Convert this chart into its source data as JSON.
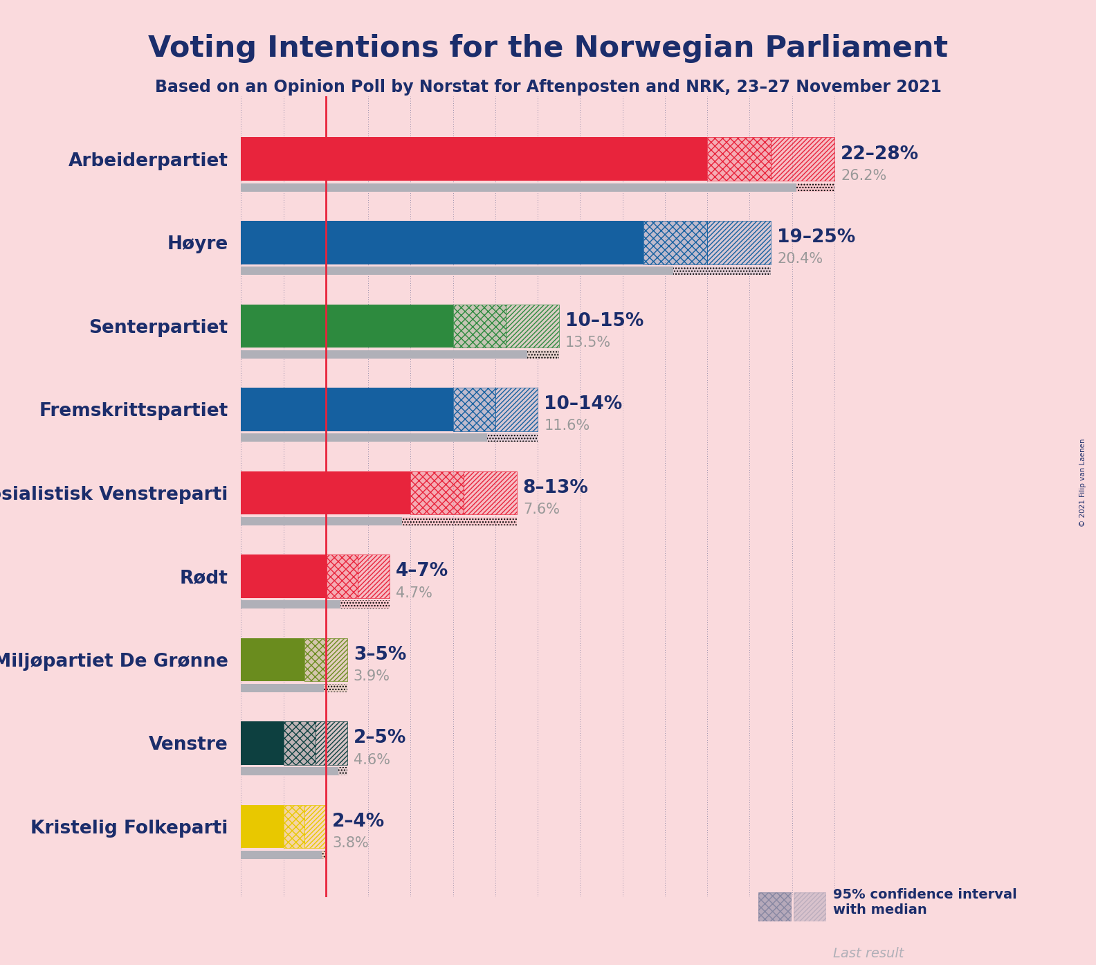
{
  "title": "Voting Intentions for the Norwegian Parliament",
  "subtitle": "Based on an Opinion Poll by Norstat for Aftenposten and NRK, 23–27 November 2021",
  "copyright": "© 2021 Filip van Laenen",
  "background_color": "#fadadd",
  "parties": [
    {
      "name": "Arbeiderpartiet",
      "color": "#e8243c",
      "ci_low": 22,
      "ci_high": 28,
      "last_result": 26.2,
      "label": "22–28%",
      "median_label": "26.2%"
    },
    {
      "name": "Høyre",
      "color": "#1560a0",
      "ci_low": 19,
      "ci_high": 25,
      "last_result": 20.4,
      "label": "19–25%",
      "median_label": "20.4%"
    },
    {
      "name": "Senterpartiet",
      "color": "#2d8a3e",
      "ci_low": 10,
      "ci_high": 15,
      "last_result": 13.5,
      "label": "10–15%",
      "median_label": "13.5%"
    },
    {
      "name": "Fremskrittspartiet",
      "color": "#1560a0",
      "ci_low": 10,
      "ci_high": 14,
      "last_result": 11.6,
      "label": "10–14%",
      "median_label": "11.6%"
    },
    {
      "name": "Sosialistisk Venstreparti",
      "color": "#e8243c",
      "ci_low": 8,
      "ci_high": 13,
      "last_result": 7.6,
      "label": "8–13%",
      "median_label": "7.6%"
    },
    {
      "name": "Rødt",
      "color": "#e8243c",
      "ci_low": 4,
      "ci_high": 7,
      "last_result": 4.7,
      "label": "4–7%",
      "median_label": "4.7%"
    },
    {
      "name": "Miljøpartiet De Grønne",
      "color": "#6a8c1e",
      "ci_low": 3,
      "ci_high": 5,
      "last_result": 3.9,
      "label": "3–5%",
      "median_label": "3.9%"
    },
    {
      "name": "Venstre",
      "color": "#0d4040",
      "ci_low": 2,
      "ci_high": 5,
      "last_result": 4.6,
      "label": "2–5%",
      "median_label": "4.6%"
    },
    {
      "name": "Kristelig Folkeparti",
      "color": "#e8c800",
      "ci_low": 2,
      "ci_high": 4,
      "last_result": 3.8,
      "label": "2–4%",
      "median_label": "3.8%"
    }
  ],
  "red_line_x": 4.0,
  "xlim": [
    0,
    30
  ],
  "title_color": "#1b2d6b",
  "label_color": "#1b2d6b",
  "median_label_color": "#999999",
  "bar_height": 0.52,
  "last_result_color": "#b0b0b8",
  "grid_color": "#1b2d6b",
  "legend_solid_color": "#1b3a6b",
  "legend_cross_color": "#1b3a6b",
  "legend_diag_color": "#1b3a6b"
}
